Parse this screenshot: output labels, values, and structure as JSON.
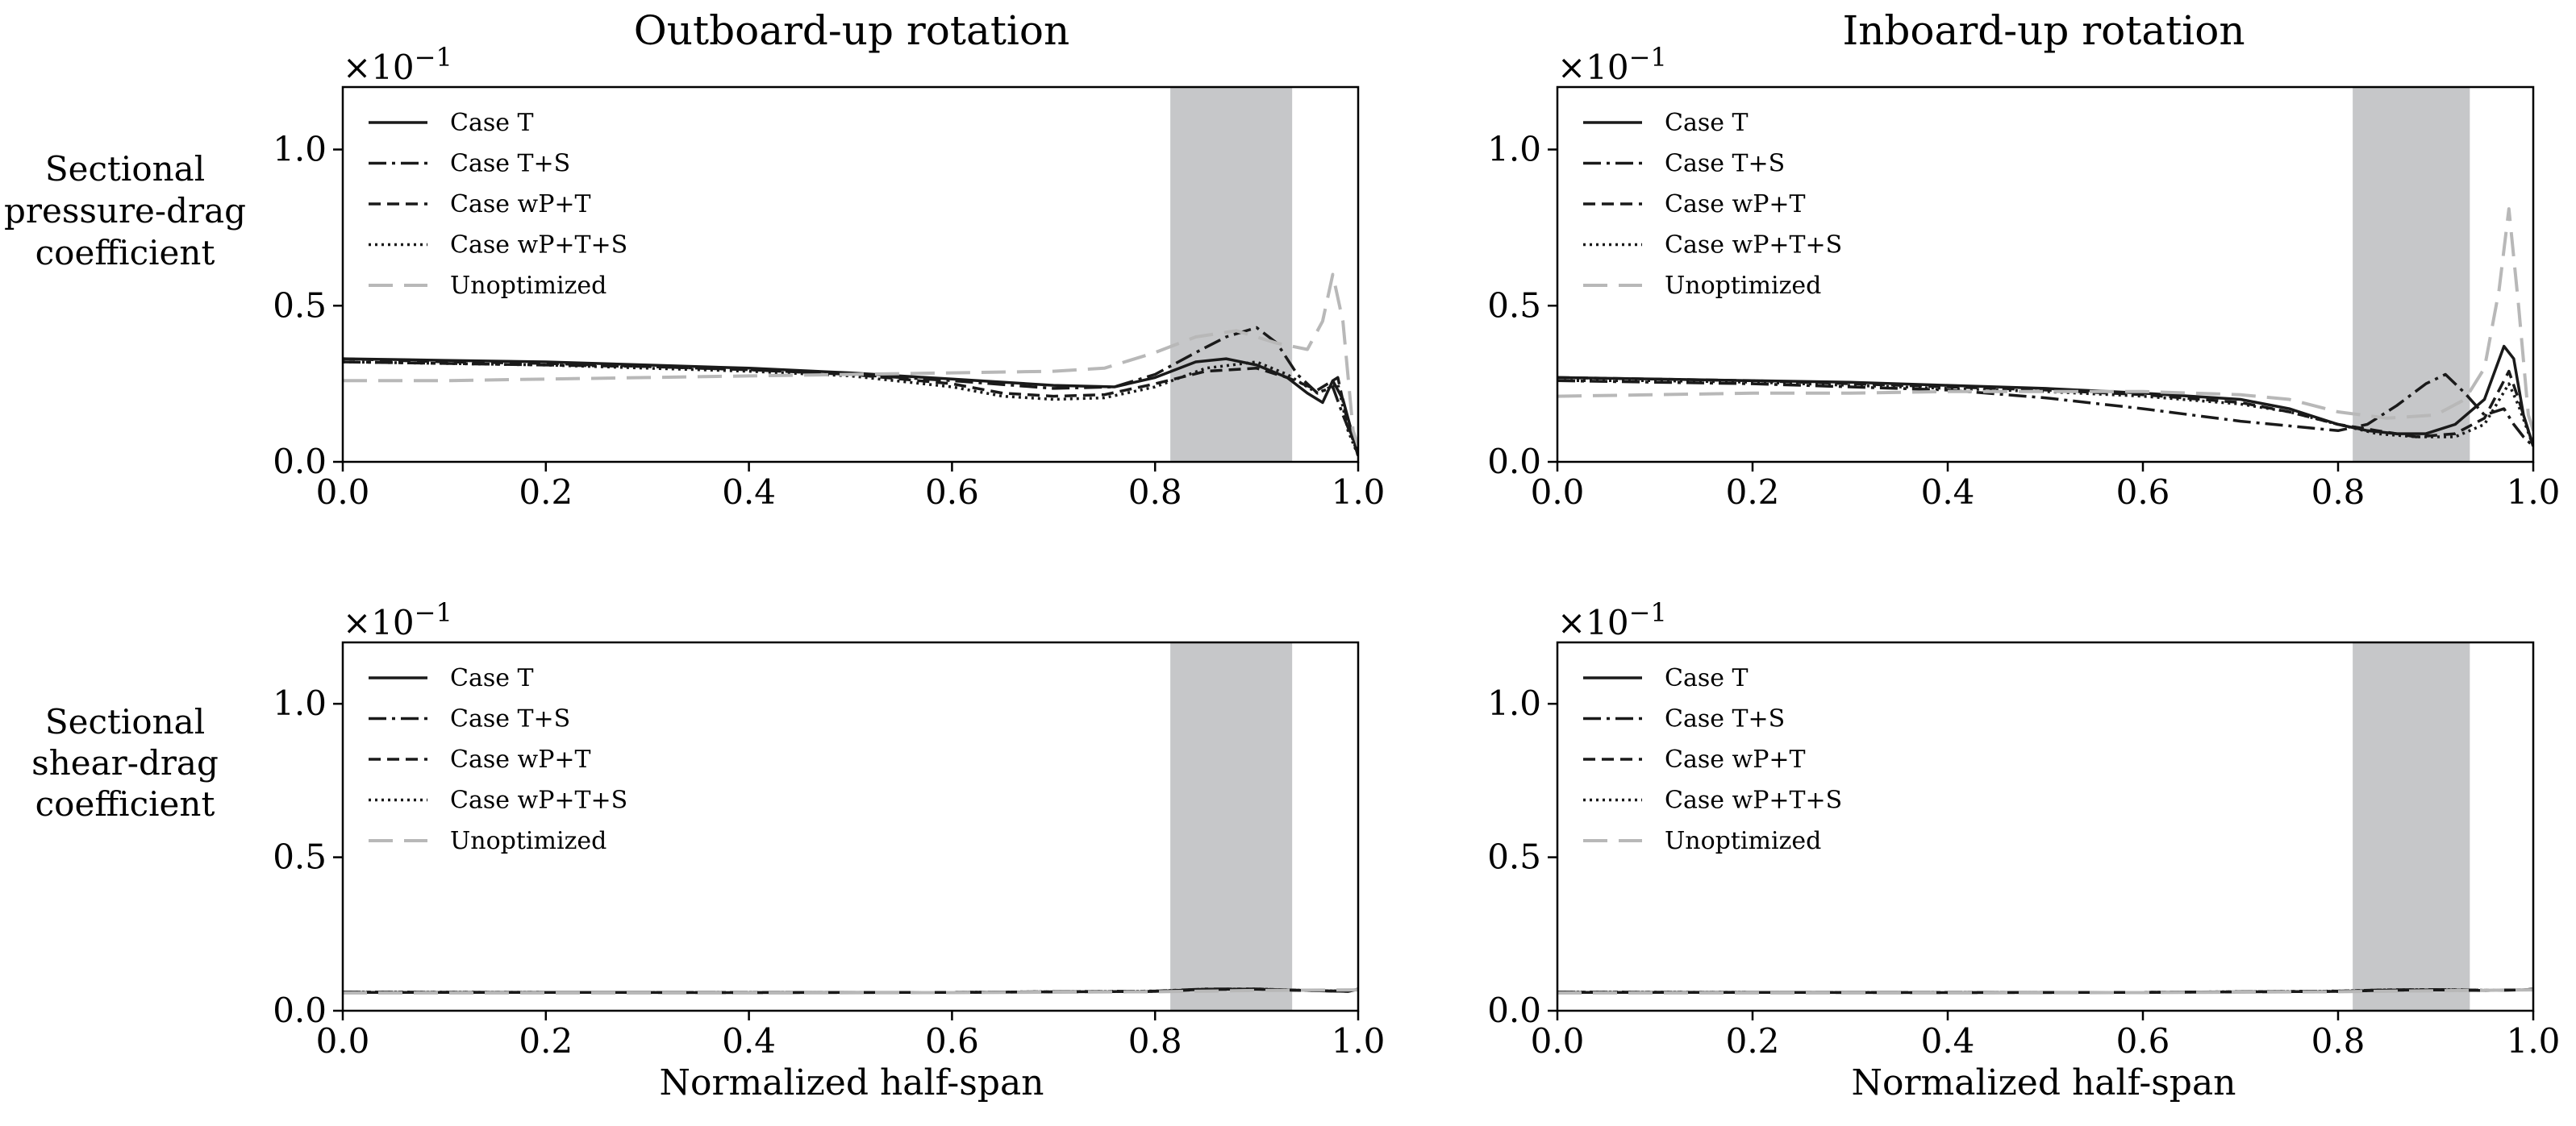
{
  "figure": {
    "col_titles": [
      "Outboard-up rotation",
      "Inboard-up rotation"
    ],
    "row_labels": [
      [
        "Sectional",
        "pressure-drag",
        "coefficient"
      ],
      [
        "Sectional",
        "shear-drag",
        "coefficient"
      ]
    ],
    "xlabel": "Normalized half-span",
    "offset_base": "×10",
    "offset_exp": "−1",
    "colors": {
      "dark": "#1a1a1a",
      "gray": "#b8b8b8",
      "band": "#c6c7c9",
      "axis": "#000000"
    }
  },
  "chart_data": [
    {
      "type": "line",
      "id": "pressure-outboard",
      "title": "Outboard-up rotation",
      "ylabel": "Sectional pressure-drag coefficient",
      "xlabel": "",
      "xlim": [
        0,
        1
      ],
      "ylim": [
        0,
        1.2
      ],
      "xticks": [
        "0.0",
        "0.2",
        "0.4",
        "0.6",
        "0.8",
        "1.0"
      ],
      "yticks": [
        "0.0",
        "0.5",
        "1.0"
      ],
      "shaded_band": [
        0.815,
        0.935
      ],
      "legend": "top-left",
      "series": [
        {
          "name": "Case T",
          "style": "solid",
          "color": "dark",
          "x": [
            0,
            0.1,
            0.2,
            0.3,
            0.4,
            0.5,
            0.6,
            0.7,
            0.76,
            0.8,
            0.84,
            0.87,
            0.9,
            0.93,
            0.95,
            0.965,
            0.975,
            0.985,
            1.0
          ],
          "y": [
            0.33,
            0.325,
            0.32,
            0.31,
            0.3,
            0.285,
            0.265,
            0.245,
            0.24,
            0.27,
            0.32,
            0.33,
            0.31,
            0.27,
            0.22,
            0.19,
            0.26,
            0.2,
            0.02
          ]
        },
        {
          "name": "Case T+S",
          "style": "dashdot",
          "color": "dark",
          "x": [
            0,
            0.1,
            0.2,
            0.3,
            0.4,
            0.5,
            0.6,
            0.7,
            0.76,
            0.8,
            0.84,
            0.87,
            0.9,
            0.92,
            0.94,
            0.96,
            0.975,
            0.985,
            1.0
          ],
          "y": [
            0.32,
            0.315,
            0.31,
            0.305,
            0.295,
            0.28,
            0.26,
            0.235,
            0.24,
            0.28,
            0.35,
            0.4,
            0.43,
            0.38,
            0.28,
            0.22,
            0.24,
            0.15,
            0.03
          ]
        },
        {
          "name": "Case wP+T",
          "style": "dashed",
          "color": "dark",
          "x": [
            0,
            0.1,
            0.2,
            0.3,
            0.4,
            0.5,
            0.6,
            0.65,
            0.7,
            0.75,
            0.8,
            0.85,
            0.9,
            0.93,
            0.96,
            0.98,
            0.99,
            1.0
          ],
          "y": [
            0.33,
            0.32,
            0.315,
            0.305,
            0.295,
            0.28,
            0.25,
            0.22,
            0.21,
            0.215,
            0.25,
            0.29,
            0.3,
            0.27,
            0.23,
            0.27,
            0.12,
            0.02
          ]
        },
        {
          "name": "Case wP+T+S",
          "style": "dotted",
          "color": "dark",
          "x": [
            0,
            0.1,
            0.2,
            0.3,
            0.4,
            0.5,
            0.6,
            0.65,
            0.7,
            0.75,
            0.8,
            0.85,
            0.9,
            0.93,
            0.96,
            0.98,
            0.99,
            1.0
          ],
          "y": [
            0.32,
            0.315,
            0.31,
            0.3,
            0.29,
            0.275,
            0.24,
            0.21,
            0.2,
            0.205,
            0.24,
            0.3,
            0.32,
            0.28,
            0.22,
            0.25,
            0.1,
            0.02
          ]
        },
        {
          "name": "Unoptimized",
          "style": "longdash",
          "color": "gray",
          "x": [
            0,
            0.1,
            0.2,
            0.3,
            0.4,
            0.5,
            0.6,
            0.7,
            0.75,
            0.8,
            0.84,
            0.88,
            0.92,
            0.95,
            0.965,
            0.975,
            0.985,
            0.995,
            1.0
          ],
          "y": [
            0.26,
            0.26,
            0.265,
            0.27,
            0.275,
            0.28,
            0.285,
            0.29,
            0.3,
            0.35,
            0.4,
            0.42,
            0.38,
            0.36,
            0.45,
            0.6,
            0.45,
            0.1,
            0.05
          ]
        }
      ]
    },
    {
      "type": "line",
      "id": "pressure-inboard",
      "title": "Inboard-up rotation",
      "ylabel": "Sectional pressure-drag coefficient",
      "xlabel": "",
      "xlim": [
        0,
        1
      ],
      "ylim": [
        0,
        1.2
      ],
      "xticks": [
        "0.0",
        "0.2",
        "0.4",
        "0.6",
        "0.8",
        "1.0"
      ],
      "yticks": [
        "0.0",
        "0.5",
        "1.0"
      ],
      "shaded_band": [
        0.815,
        0.935
      ],
      "legend": "top-left",
      "series": [
        {
          "name": "Case T",
          "style": "solid",
          "color": "dark",
          "x": [
            0,
            0.1,
            0.2,
            0.3,
            0.4,
            0.5,
            0.6,
            0.7,
            0.75,
            0.8,
            0.83,
            0.86,
            0.89,
            0.92,
            0.95,
            0.97,
            0.98,
            0.99,
            1.0
          ],
          "y": [
            0.27,
            0.265,
            0.26,
            0.255,
            0.245,
            0.235,
            0.22,
            0.2,
            0.17,
            0.12,
            0.1,
            0.09,
            0.09,
            0.12,
            0.2,
            0.37,
            0.33,
            0.15,
            0.05
          ]
        },
        {
          "name": "Case T+S",
          "style": "dashdot",
          "color": "dark",
          "x": [
            0,
            0.1,
            0.2,
            0.3,
            0.4,
            0.5,
            0.6,
            0.7,
            0.75,
            0.8,
            0.83,
            0.86,
            0.89,
            0.91,
            0.93,
            0.95,
            0.97,
            0.98,
            0.99,
            1.0
          ],
          "y": [
            0.26,
            0.255,
            0.25,
            0.24,
            0.23,
            0.205,
            0.17,
            0.13,
            0.115,
            0.1,
            0.12,
            0.18,
            0.25,
            0.28,
            0.22,
            0.15,
            0.17,
            0.12,
            0.08,
            0.05
          ]
        },
        {
          "name": "Case wP+T",
          "style": "dashed",
          "color": "dark",
          "x": [
            0,
            0.1,
            0.2,
            0.3,
            0.4,
            0.5,
            0.6,
            0.7,
            0.75,
            0.8,
            0.84,
            0.88,
            0.92,
            0.95,
            0.975,
            0.985,
            1.0
          ],
          "y": [
            0.27,
            0.265,
            0.26,
            0.25,
            0.24,
            0.23,
            0.215,
            0.19,
            0.16,
            0.12,
            0.1,
            0.08,
            0.09,
            0.14,
            0.29,
            0.2,
            0.05
          ]
        },
        {
          "name": "Case wP+T+S",
          "style": "dotted",
          "color": "dark",
          "x": [
            0,
            0.1,
            0.2,
            0.3,
            0.4,
            0.5,
            0.6,
            0.7,
            0.75,
            0.8,
            0.84,
            0.88,
            0.92,
            0.95,
            0.975,
            0.985,
            1.0
          ],
          "y": [
            0.26,
            0.26,
            0.255,
            0.245,
            0.235,
            0.225,
            0.21,
            0.185,
            0.16,
            0.12,
            0.09,
            0.08,
            0.08,
            0.12,
            0.25,
            0.18,
            0.05
          ]
        },
        {
          "name": "Unoptimized",
          "style": "longdash",
          "color": "gray",
          "x": [
            0,
            0.1,
            0.2,
            0.3,
            0.4,
            0.5,
            0.6,
            0.7,
            0.75,
            0.8,
            0.85,
            0.9,
            0.93,
            0.95,
            0.965,
            0.975,
            0.985,
            0.995,
            1.0
          ],
          "y": [
            0.21,
            0.215,
            0.22,
            0.22,
            0.225,
            0.225,
            0.225,
            0.215,
            0.2,
            0.16,
            0.14,
            0.15,
            0.2,
            0.3,
            0.55,
            0.81,
            0.5,
            0.15,
            0.1
          ]
        }
      ]
    },
    {
      "type": "line",
      "id": "shear-outboard",
      "title": "",
      "ylabel": "Sectional shear-drag coefficient",
      "xlabel": "Normalized half-span",
      "xlim": [
        0,
        1
      ],
      "ylim": [
        0,
        1.2
      ],
      "xticks": [
        "0.0",
        "0.2",
        "0.4",
        "0.6",
        "0.8",
        "1.0"
      ],
      "yticks": [
        "0.0",
        "0.5",
        "1.0"
      ],
      "shaded_band": [
        0.815,
        0.935
      ],
      "legend": "top-left",
      "series": [
        {
          "name": "Case T",
          "style": "solid",
          "color": "dark",
          "x": [
            0,
            0.2,
            0.4,
            0.6,
            0.8,
            0.85,
            0.9,
            0.95,
            0.99,
            1.0
          ],
          "y": [
            0.06,
            0.06,
            0.059,
            0.06,
            0.063,
            0.07,
            0.07,
            0.066,
            0.063,
            0.07
          ]
        },
        {
          "name": "Case T+S",
          "style": "dashdot",
          "color": "dark",
          "x": [
            0,
            0.2,
            0.4,
            0.6,
            0.8,
            0.85,
            0.9,
            0.95,
            0.99,
            1.0
          ],
          "y": [
            0.061,
            0.06,
            0.06,
            0.06,
            0.064,
            0.071,
            0.071,
            0.066,
            0.064,
            0.07
          ]
        },
        {
          "name": "Case wP+T",
          "style": "dashed",
          "color": "dark",
          "x": [
            0,
            0.2,
            0.4,
            0.6,
            0.8,
            0.85,
            0.9,
            0.95,
            0.99,
            1.0
          ],
          "y": [
            0.06,
            0.06,
            0.059,
            0.06,
            0.063,
            0.069,
            0.07,
            0.066,
            0.063,
            0.07
          ]
        },
        {
          "name": "Case wP+T+S",
          "style": "dotted",
          "color": "dark",
          "x": [
            0,
            0.2,
            0.4,
            0.6,
            0.8,
            0.85,
            0.9,
            0.95,
            0.99,
            1.0
          ],
          "y": [
            0.061,
            0.06,
            0.06,
            0.06,
            0.064,
            0.07,
            0.071,
            0.066,
            0.064,
            0.07
          ]
        },
        {
          "name": "Unoptimized",
          "style": "longdash",
          "color": "gray",
          "x": [
            0,
            0.2,
            0.4,
            0.6,
            0.8,
            0.9,
            1.0
          ],
          "y": [
            0.058,
            0.058,
            0.058,
            0.059,
            0.062,
            0.066,
            0.068
          ]
        }
      ]
    },
    {
      "type": "line",
      "id": "shear-inboard",
      "title": "",
      "ylabel": "Sectional shear-drag coefficient",
      "xlabel": "Normalized half-span",
      "xlim": [
        0,
        1
      ],
      "ylim": [
        0,
        1.2
      ],
      "xticks": [
        "0.0",
        "0.2",
        "0.4",
        "0.6",
        "0.8",
        "1.0"
      ],
      "yticks": [
        "0.0",
        "0.5",
        "1.0"
      ],
      "shaded_band": [
        0.815,
        0.935
      ],
      "legend": "top-left",
      "series": [
        {
          "name": "Case T",
          "style": "solid",
          "color": "dark",
          "x": [
            0,
            0.2,
            0.4,
            0.6,
            0.8,
            0.85,
            0.9,
            0.95,
            0.99,
            1.0
          ],
          "y": [
            0.06,
            0.06,
            0.059,
            0.06,
            0.063,
            0.067,
            0.068,
            0.066,
            0.068,
            0.07
          ]
        },
        {
          "name": "Case T+S",
          "style": "dashdot",
          "color": "dark",
          "x": [
            0,
            0.2,
            0.4,
            0.6,
            0.8,
            0.85,
            0.9,
            0.95,
            0.99,
            1.0
          ],
          "y": [
            0.061,
            0.06,
            0.06,
            0.06,
            0.064,
            0.068,
            0.069,
            0.067,
            0.068,
            0.07
          ]
        },
        {
          "name": "Case wP+T",
          "style": "dashed",
          "color": "dark",
          "x": [
            0,
            0.2,
            0.4,
            0.6,
            0.8,
            0.85,
            0.9,
            0.95,
            0.99,
            1.0
          ],
          "y": [
            0.06,
            0.06,
            0.059,
            0.06,
            0.063,
            0.067,
            0.068,
            0.066,
            0.068,
            0.07
          ]
        },
        {
          "name": "Case wP+T+S",
          "style": "dotted",
          "color": "dark",
          "x": [
            0,
            0.2,
            0.4,
            0.6,
            0.8,
            0.85,
            0.9,
            0.95,
            0.99,
            1.0
          ],
          "y": [
            0.061,
            0.06,
            0.06,
            0.06,
            0.064,
            0.068,
            0.069,
            0.067,
            0.068,
            0.07
          ]
        },
        {
          "name": "Unoptimized",
          "style": "longdash",
          "color": "gray",
          "x": [
            0,
            0.2,
            0.4,
            0.6,
            0.8,
            0.9,
            1.0
          ],
          "y": [
            0.058,
            0.058,
            0.058,
            0.059,
            0.062,
            0.065,
            0.068
          ]
        }
      ]
    }
  ]
}
